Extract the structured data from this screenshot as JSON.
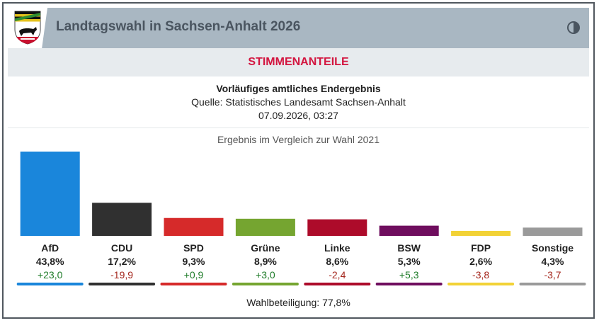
{
  "header": {
    "title": "Landtagswahl in Sachsen-Anhalt 2026",
    "crest_icon": "coat-of-arms-icon",
    "theme_icon": "contrast-toggle-icon"
  },
  "section_title": "STIMMENANTEILE",
  "info": {
    "status": "Vorläufiges amtliches Endergebnis",
    "source": "Quelle: Statistisches Landesamt Sachsen-Anhalt",
    "timestamp": "07.09.2026, 03:27"
  },
  "comparison_label": "Ergebnis im Vergleich zur Wahl 2021",
  "turnout": "Wahlbeteiligung: 77,8%",
  "colors": {
    "positive": "#1e7b28",
    "negative": "#a4261c",
    "accent": "#d3153f"
  },
  "chart_data": {
    "type": "bar",
    "categories": [
      "AfD",
      "CDU",
      "SPD",
      "Grüne",
      "Linke",
      "BSW",
      "FDP",
      "Sonstige"
    ],
    "values": [
      43.8,
      17.2,
      9.3,
      8.9,
      8.6,
      5.3,
      2.6,
      4.3
    ],
    "value_labels": [
      "43,8%",
      "17,2%",
      "9,3%",
      "8,9%",
      "8,6%",
      "5,3%",
      "2,6%",
      "4,3%"
    ],
    "changes": [
      23.0,
      -19.9,
      0.9,
      3.0,
      -2.4,
      5.3,
      -3.8,
      -3.7
    ],
    "change_labels": [
      "+23,0",
      "-19,9",
      "+0,9",
      "+3,0",
      "-2,4",
      "+5,3",
      "-3,8",
      "-3,7"
    ],
    "colors": [
      "#1a86db",
      "#303030",
      "#d62a2a",
      "#75a530",
      "#ad0b2a",
      "#6f0d5e",
      "#f2d236",
      "#9a9a9a"
    ],
    "ylim": [
      0,
      43.8
    ]
  }
}
